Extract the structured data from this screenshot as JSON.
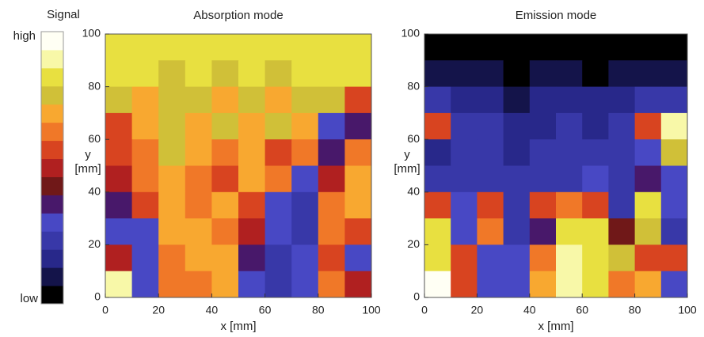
{
  "colorbar": {
    "title": "Signal",
    "high_label": "high",
    "low_label": "low",
    "colors": [
      "#000000",
      "#14144a",
      "#28288a",
      "#3838a8",
      "#4848c4",
      "#48186a",
      "#701818",
      "#b02020",
      "#d84420",
      "#f07828",
      "#f8a830",
      "#d0c038",
      "#e8e040",
      "#f8f8a8",
      "#fffff4"
    ]
  },
  "chart_data": [
    {
      "type": "heatmap",
      "title": "Absorption mode",
      "xlabel": "x [mm]",
      "ylabel": [
        "y",
        "[mm]"
      ],
      "xlim": [
        0,
        100
      ],
      "ylim": [
        0,
        100
      ],
      "xticks": [
        0,
        20,
        40,
        60,
        80,
        100
      ],
      "yticks": [
        0,
        20,
        40,
        60,
        80,
        100
      ],
      "z": [
        [
          12,
          12,
          12,
          12,
          12,
          12,
          12,
          12,
          12,
          12
        ],
        [
          12,
          12,
          11,
          12,
          11,
          12,
          11,
          12,
          12,
          12
        ],
        [
          11,
          10,
          11,
          11,
          10,
          11,
          10,
          11,
          11,
          8
        ],
        [
          8,
          10,
          11,
          10,
          11,
          10,
          11,
          10,
          4,
          5
        ],
        [
          8,
          9,
          11,
          10,
          9,
          10,
          8,
          9,
          5,
          9
        ],
        [
          7,
          9,
          10,
          9,
          8,
          10,
          9,
          4,
          7,
          10
        ],
        [
          5,
          8,
          10,
          9,
          10,
          8,
          4,
          3,
          9,
          10
        ],
        [
          4,
          4,
          10,
          10,
          9,
          7,
          4,
          3,
          9,
          8
        ],
        [
          7,
          4,
          9,
          10,
          10,
          5,
          3,
          4,
          8,
          4
        ],
        [
          13,
          4,
          9,
          9,
          10,
          4,
          3,
          4,
          9,
          7
        ]
      ]
    },
    {
      "type": "heatmap",
      "title": "Emission mode",
      "xlabel": "x [mm]",
      "ylabel": [
        "y",
        "[mm]"
      ],
      "xlim": [
        0,
        100
      ],
      "ylim": [
        0,
        100
      ],
      "xticks": [
        0,
        20,
        40,
        60,
        80,
        100
      ],
      "yticks": [
        0,
        20,
        40,
        60,
        80,
        100
      ],
      "z": [
        [
          0,
          0,
          0,
          0,
          0,
          0,
          0,
          0,
          0,
          0
        ],
        [
          1,
          1,
          1,
          0,
          1,
          1,
          0,
          1,
          1,
          1
        ],
        [
          3,
          2,
          2,
          1,
          2,
          2,
          2,
          2,
          3,
          3
        ],
        [
          8,
          3,
          3,
          2,
          2,
          3,
          2,
          3,
          8,
          13
        ],
        [
          2,
          3,
          3,
          2,
          3,
          3,
          3,
          3,
          4,
          11
        ],
        [
          3,
          3,
          3,
          3,
          3,
          3,
          4,
          3,
          5,
          4
        ],
        [
          8,
          4,
          8,
          3,
          8,
          9,
          8,
          3,
          12,
          4
        ],
        [
          12,
          4,
          9,
          3,
          5,
          12,
          12,
          6,
          11,
          3
        ],
        [
          12,
          8,
          4,
          4,
          9,
          13,
          12,
          11,
          8,
          8
        ],
        [
          14,
          8,
          4,
          4,
          10,
          13,
          12,
          9,
          10,
          4
        ]
      ]
    }
  ]
}
